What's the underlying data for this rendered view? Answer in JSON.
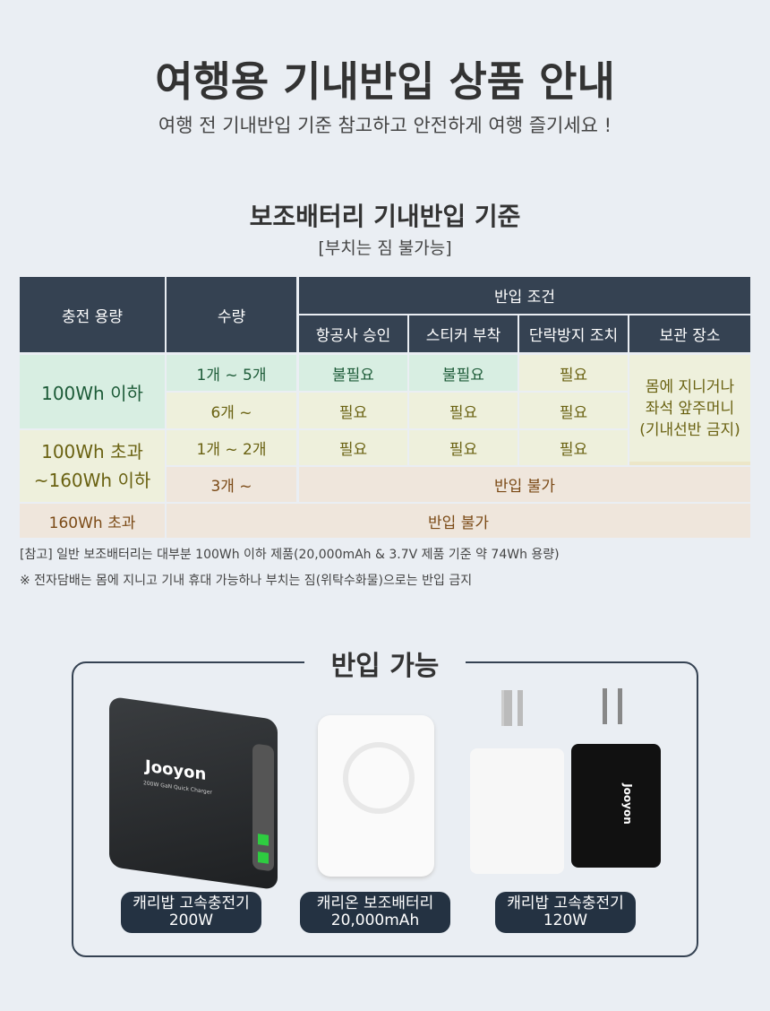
{
  "header": {
    "title": "여행용 기내반입 상품 안내",
    "subtitle": "여행 전 기내반입 기준 참고하고 안전하게 여행 즐기세요 !"
  },
  "battery": {
    "title": "보조배터리 기내반입 기준",
    "subtitle": "[부치는 짐 불가능]"
  },
  "table": {
    "headers": {
      "capacity": "충전 용량",
      "quantity": "수량",
      "conditions": "반입 조건",
      "sub": [
        "항공사 승인",
        "스티커 부착",
        "단락방지 조치",
        "보관 장소"
      ]
    },
    "rows": [
      {
        "capacity": "100Wh 이하",
        "quantity": "1개 ~ 5개",
        "approval": "불필요",
        "sticker": "불필요",
        "short": "필요"
      },
      {
        "quantity": "6개 ~",
        "approval": "필요",
        "sticker": "필요",
        "short": "필요"
      },
      {
        "capacity": "100Wh 초과\n~160Wh 이하",
        "quantity": "1개 ~ 2개",
        "approval": "필요",
        "sticker": "필요",
        "short": "필요"
      },
      {
        "quantity": "3개 ~",
        "merged": "반입 불가"
      },
      {
        "capacity": "160Wh 초과",
        "merged": "반입 불가"
      }
    ],
    "storage": "몸에 지니거나\n좌석 앞주머니\n(기내선반 금지)"
  },
  "notes": [
    "[참고] 일반 보조배터리는 대부분 100Wh 이하 제품(20,000mAh & 3.7V 제품 기준 약 74Wh 용량)",
    "※ 전자담배는 몸에 지니고 기내 휴대 가능하나 부치는 짐(위탁수화물)으로는 반입 금지"
  ],
  "allowed": {
    "title": "반입 가능",
    "products": [
      {
        "name": "캐리밥 고속충전기",
        "spec": "200W",
        "logo": "Jooyon",
        "caption": "200W GaN Quick Charger"
      },
      {
        "name": "캐리온 보조배터리",
        "spec": "20,000mAh"
      },
      {
        "name": "캐리밥 고속충전기",
        "spec": "120W",
        "logo": "Jooyon"
      }
    ]
  },
  "colors": {
    "header": "#354252",
    "mint": "#d8eee2",
    "yellow": "#eef0dc",
    "peach": "#efe6dc",
    "accent": "#2ecc40"
  }
}
